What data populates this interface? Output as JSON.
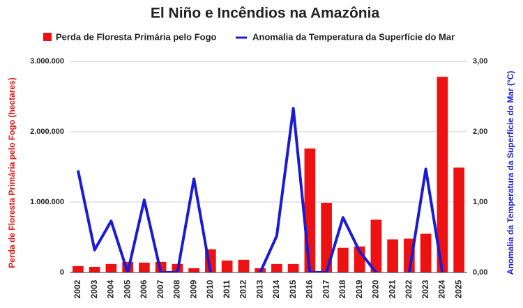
{
  "chart_data": {
    "type": "bar-line",
    "title": "El Niño e Incêndios na Amazônia",
    "categories": [
      "2002",
      "2003",
      "2004",
      "2005",
      "2006",
      "2007",
      "2008",
      "2009",
      "2010",
      "2011",
      "2012",
      "2013",
      "2014",
      "2015",
      "2016",
      "2017",
      "2018",
      "2019",
      "2020",
      "2021",
      "2022",
      "2023",
      "2024",
      "2025"
    ],
    "series": [
      {
        "name": "Perda de Floresta Primária pelo Fogo",
        "type": "bar",
        "color": "#ee1111",
        "values": [
          90000,
          80000,
          120000,
          150000,
          140000,
          150000,
          120000,
          60000,
          330000,
          170000,
          180000,
          60000,
          120000,
          120000,
          1760000,
          990000,
          350000,
          370000,
          750000,
          470000,
          480000,
          550000,
          2780000,
          1490000
        ]
      },
      {
        "name": "Anomalia da Temperatura da Superfície do Mar",
        "type": "line",
        "axis": "y2",
        "color": "#1a1ad6",
        "values": [
          1.45,
          0.32,
          0.73,
          0,
          1.03,
          0,
          0,
          1.33,
          0,
          null,
          null,
          0,
          0.52,
          2.33,
          0,
          0,
          0.78,
          0.3,
          0,
          null,
          0,
          1.47,
          0,
          null
        ]
      }
    ],
    "y_label": "Perda de Floresta Primária pelo Fogo (hectares)",
    "y2_label": "Anomalia da Temperatura da Superfície do Mar (°C)",
    "ylim": [
      0,
      3000000
    ],
    "yticks": [
      0,
      {
        "value": 1000000,
        "label": "1.000.000"
      },
      {
        "value": 2000000,
        "label": "2.000.000"
      },
      {
        "value": 3000000,
        "label": "3.000.000"
      }
    ],
    "y2lim": [
      0,
      3
    ],
    "y2ticks": [
      {
        "value": 0,
        "label": "0,00"
      },
      {
        "value": 1,
        "label": "1,00"
      },
      {
        "value": 2,
        "label": "2,00"
      },
      {
        "value": 3,
        "label": "3,00"
      }
    ],
    "grid": true
  }
}
